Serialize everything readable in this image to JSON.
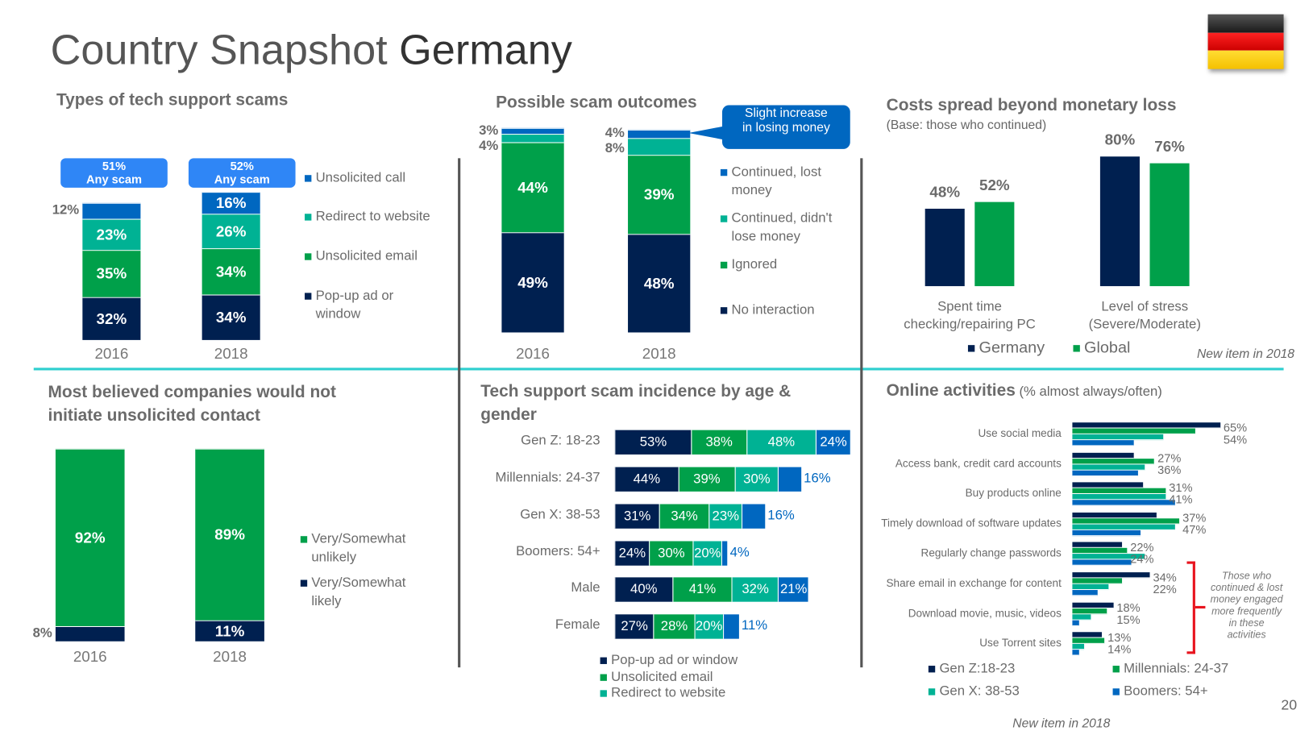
{
  "title": {
    "prefix": "Country Snapshot",
    "country": "Germany"
  },
  "page_number": "20",
  "colors": {
    "navy": "#002050",
    "green": "#00A04A",
    "teal": "#00B294",
    "blue": "#0067C0",
    "label_box": "#2F86F6",
    "divider": "#2ECFCF",
    "bracket": "#E8141E"
  },
  "flag": {
    "icon": "germany-flag-icon",
    "stripes": [
      "#2b2b2b",
      "#DD0000",
      "#FFCE00"
    ]
  },
  "chart_data": [
    {
      "type": "bar",
      "stacked": true,
      "title": "Types of tech support scams",
      "categories": [
        "2016",
        "2018"
      ],
      "totals": [
        {
          "value": "51%",
          "label": "Any scam"
        },
        {
          "value": "52%",
          "label": "Any scam"
        }
      ],
      "series": [
        {
          "name": "Pop-up ad or window",
          "color": "#002050",
          "values": [
            32,
            34
          ]
        },
        {
          "name": "Unsolicited email",
          "color": "#00A04A",
          "values": [
            35,
            34
          ]
        },
        {
          "name": "Redirect to website",
          "color": "#00B294",
          "values": [
            23,
            26
          ]
        },
        {
          "name": "Unsolicited call",
          "color": "#0067C0",
          "values": [
            12,
            16
          ]
        }
      ],
      "legend": [
        "Unsolicited call",
        "Redirect to website",
        "Unsolicited email",
        "Pop-up ad or window"
      ]
    },
    {
      "type": "bar",
      "stacked": true,
      "title": "Possible scam outcomes",
      "categories": [
        "2016",
        "2018"
      ],
      "series": [
        {
          "name": "No interaction",
          "color": "#002050",
          "values": [
            49,
            48
          ]
        },
        {
          "name": "Ignored",
          "color": "#00A04A",
          "values": [
            44,
            39
          ]
        },
        {
          "name": "Continued, didn't lose money",
          "color": "#00B294",
          "values": [
            4,
            8
          ]
        },
        {
          "name": "Continued, lost money",
          "color": "#0067C0",
          "values": [
            3,
            4
          ]
        }
      ],
      "legend": [
        "Continued, lost money",
        "Continued, didn't lose money",
        "Ignored",
        "No interaction"
      ],
      "callout": "Slight increase in losing money"
    },
    {
      "type": "bar",
      "title": "Costs spread beyond monetary loss",
      "subtitle": "(Base: those who continued)",
      "categories": [
        "Spent time checking/repairing PC",
        "Level of stress (Severe/Moderate)"
      ],
      "series": [
        {
          "name": "Germany",
          "color": "#002050",
          "values": [
            48,
            80
          ]
        },
        {
          "name": "Global",
          "color": "#00A04A",
          "values": [
            52,
            76
          ]
        }
      ],
      "note": "New item in 2018"
    },
    {
      "type": "bar",
      "stacked": true,
      "title": "Most believed companies would not initiate unsolicited contact",
      "categories": [
        "2016",
        "2018"
      ],
      "series": [
        {
          "name": "Very/Somewhat likely",
          "color": "#002050",
          "values": [
            8,
            11
          ]
        },
        {
          "name": "Very/Somewhat unlikely",
          "color": "#00A04A",
          "values": [
            92,
            89
          ]
        }
      ],
      "legend": [
        "Very/Somewhat unlikely",
        "Very/Somewhat likely"
      ]
    },
    {
      "type": "bar",
      "orientation": "horizontal",
      "stacked": true,
      "title": "Tech support scam incidence by age & gender",
      "categories": [
        "Gen Z: 18-23",
        "Millennials: 24-37",
        "Gen X: 38-53",
        "Boomers: 54+",
        "Male",
        "Female"
      ],
      "series": [
        {
          "name": "Pop-up ad or window",
          "color": "#002050",
          "values": [
            53,
            44,
            31,
            24,
            40,
            27
          ]
        },
        {
          "name": "Unsolicited email",
          "color": "#00A04A",
          "values": [
            38,
            39,
            34,
            30,
            41,
            28
          ]
        },
        {
          "name": "Redirect to website",
          "color": "#00B294",
          "values": [
            48,
            30,
            23,
            20,
            32,
            20
          ]
        },
        {
          "color": "#0067C0",
          "values": [
            24,
            16,
            16,
            4,
            21,
            11
          ]
        }
      ],
      "legend": [
        "Pop-up ad or window",
        "Unsolicited email",
        "Redirect to website"
      ]
    },
    {
      "type": "bar",
      "orientation": "horizontal",
      "title": "Online activities",
      "subtitle": "(% almost always/often)",
      "categories": [
        "Use social media",
        "Access bank, credit card accounts",
        "Buy products online",
        "Timely download of software updates",
        "Regularly change passwords",
        "Share email in exchange for content",
        "Download movie, music, videos",
        "Use Torrent sites"
      ],
      "series": [
        {
          "name": "Gen Z:18-23",
          "color": "#002050",
          "values": [
            65,
            27,
            31,
            37,
            22,
            34,
            18,
            13
          ],
          "labeled": true
        },
        {
          "name": "Millennials: 24-37",
          "color": "#00A04A",
          "values": [
            54,
            36,
            41,
            47,
            24,
            22,
            15,
            14
          ],
          "labeled": true
        },
        {
          "name": "Gen X: 38-53",
          "color": "#00B294",
          "values": [
            40,
            32,
            41,
            45,
            32,
            16,
            8,
            5
          ]
        },
        {
          "name": "Boomers: 54+",
          "color": "#0067C0",
          "values": [
            27,
            29,
            45,
            30,
            26,
            11,
            3,
            3
          ]
        }
      ],
      "annotation": "Those who continued & lost money engaged more frequently in these activities",
      "note": "New item in 2018"
    }
  ]
}
